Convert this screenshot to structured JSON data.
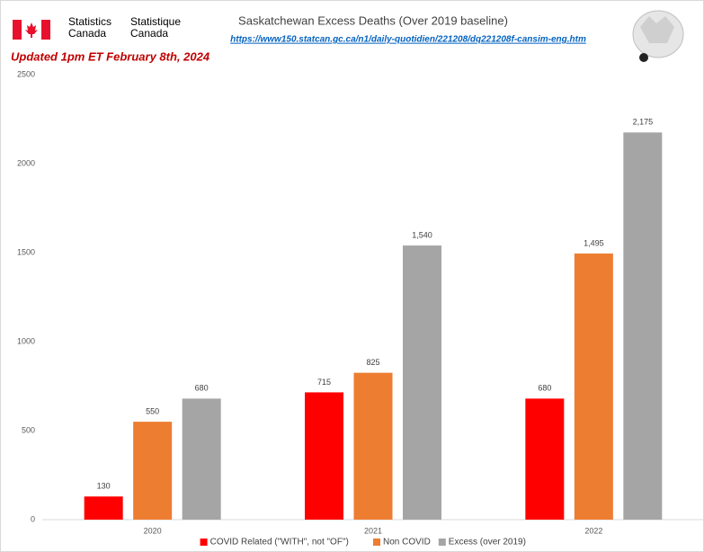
{
  "header": {
    "org_en": [
      "Statistics",
      "Canada"
    ],
    "org_fr": [
      "Statistique",
      "Canada"
    ],
    "updated": "Updated 1pm ET February 8th, 2024"
  },
  "chart_data": {
    "type": "bar",
    "title": "Saskatchewan Excess Deaths (Over 2019 baseline)",
    "subtitle": "https://www150.statcan.gc.ca/n1/daily-quotidien/221208/dq221208f-cansim-eng.htm",
    "categories": [
      "2020",
      "2021",
      "2022"
    ],
    "series": [
      {
        "name": "COVID Related (\"WITH\", not \"OF\")",
        "color": "#ff0000",
        "values": [
          130,
          715,
          680
        ]
      },
      {
        "name": "Non COVID",
        "color": "#ed7d31",
        "values": [
          550,
          825,
          1495
        ],
        "value_labels": [
          "550",
          "825",
          "1,495"
        ]
      },
      {
        "name": "Excess (over 2019)",
        "color": "#a5a5a5",
        "values": [
          680,
          1540,
          2175
        ],
        "value_labels": [
          "680",
          "1,540",
          "2,175"
        ]
      }
    ],
    "ylim": [
      0,
      2500
    ],
    "yticks": [
      0,
      500,
      1000,
      1500,
      2000,
      2500
    ],
    "grid": false,
    "legend": "bottom"
  }
}
